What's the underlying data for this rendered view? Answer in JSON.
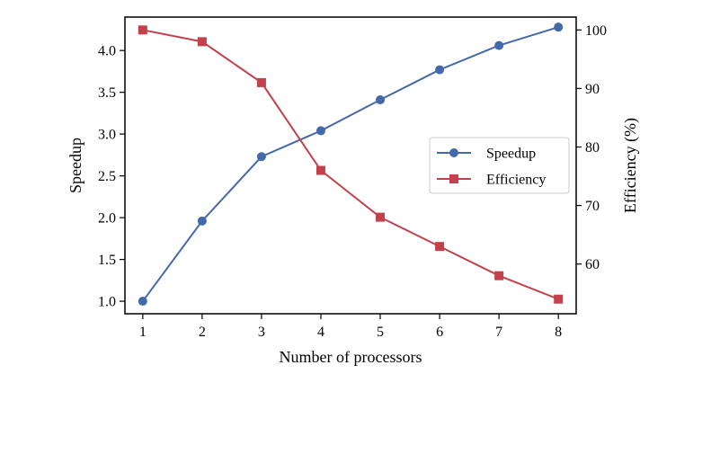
{
  "chart_data": {
    "type": "line",
    "xlabel": "Number of processors",
    "ylabel_left": "Speedup",
    "ylabel_right": "Efficiency (%)",
    "x": [
      1,
      2,
      3,
      4,
      5,
      6,
      7,
      8
    ],
    "xlim": [
      0.7,
      8.3
    ],
    "ylim_left": [
      0.85,
      4.4
    ],
    "ylim_right": [
      51.5,
      102.2
    ],
    "xticks": [
      "1",
      "2",
      "3",
      "4",
      "5",
      "6",
      "7",
      "8"
    ],
    "yticks_left": [
      "1.0",
      "1.5",
      "2.0",
      "2.5",
      "3.0",
      "3.5",
      "4.0"
    ],
    "yticks_right": [
      "60",
      "70",
      "80",
      "90",
      "100"
    ],
    "legend_position": "center-right",
    "grid": false,
    "series": [
      {
        "name": "Speedup",
        "axis": "left",
        "marker": "circle",
        "color": "#4469ab",
        "values": [
          1.0,
          1.96,
          2.73,
          3.04,
          3.41,
          3.77,
          4.06,
          4.28
        ]
      },
      {
        "name": "Efficiency",
        "axis": "right",
        "marker": "square",
        "color": "#c2424b",
        "values": [
          100,
          98,
          91,
          76,
          68,
          63,
          58,
          54
        ]
      }
    ]
  }
}
